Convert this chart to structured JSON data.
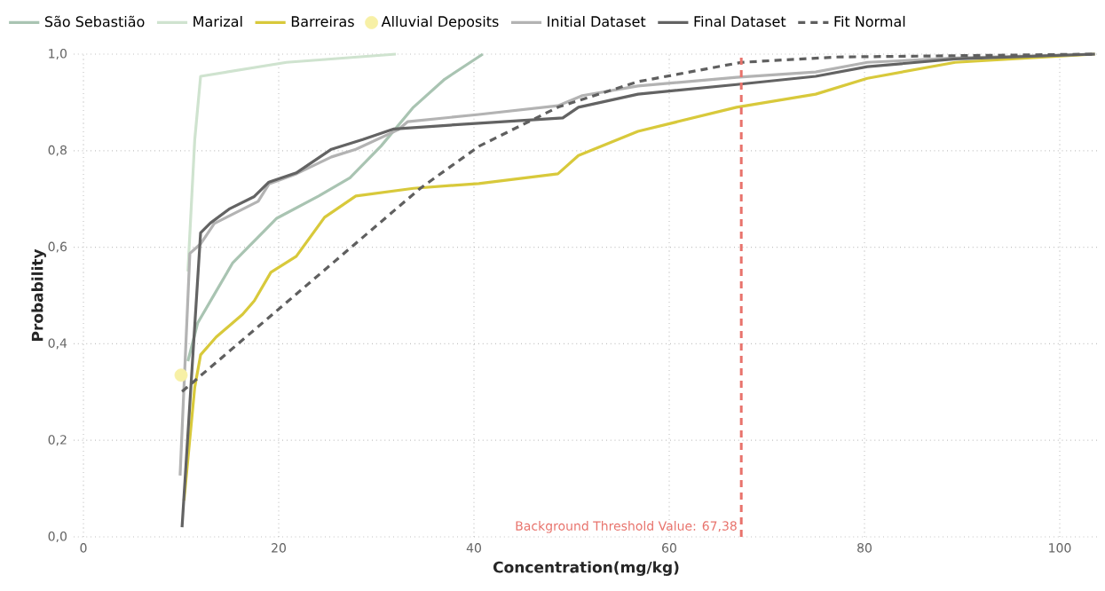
{
  "chart_data": {
    "type": "line",
    "xlabel": "Concentration(mg/kg)",
    "ylabel": "Probability",
    "xlim": [
      -1,
      104
    ],
    "ylim": [
      0,
      1
    ],
    "xticks": [
      0,
      20,
      40,
      60,
      80,
      100
    ],
    "yticks": [
      {
        "value": 0,
        "label": "0,0"
      },
      {
        "value": 0.2,
        "label": "0,2"
      },
      {
        "value": 0.4,
        "label": "0,4"
      },
      {
        "value": 0.6,
        "label": "0,6"
      },
      {
        "value": 0.8,
        "label": "0,8"
      },
      {
        "value": 1,
        "label": "1,0"
      }
    ],
    "grid": true,
    "legend": "top",
    "ref_lines": [
      {
        "axis": "x",
        "value": 67.38,
        "label": "Background Threshold Value: 67,38",
        "color": "#e8736c",
        "line_style": "dashed"
      }
    ],
    "series": [
      {
        "name": "São Sebastião",
        "color": "#a9c4b2",
        "x": [
          10.7,
          11.7,
          13.4,
          15.3,
          19.8,
          24.1,
          27.3,
          30.5,
          33.8,
          37.0,
          40.9
        ],
        "values": [
          0.364,
          0.443,
          0.502,
          0.568,
          0.66,
          0.706,
          0.744,
          0.81,
          0.89,
          0.948,
          1.0
        ]
      },
      {
        "name": "Marizal",
        "color": "#cfe3cf",
        "x": [
          10.7,
          11.4,
          12.0,
          20.8,
          32.0
        ],
        "values": [
          0.55,
          0.823,
          0.954,
          0.983,
          1.0
        ]
      },
      {
        "name": "Barreiras",
        "color": "#d8c93b",
        "x": [
          10.3,
          11.4,
          12.0,
          13.6,
          16.3,
          17.5,
          19.2,
          21.8,
          24.7,
          27.9,
          33.8,
          40.5,
          48.6,
          50.7,
          56.8,
          66.9,
          75.0,
          80.3,
          89.3,
          103.6
        ],
        "values": [
          0.075,
          0.31,
          0.377,
          0.414,
          0.461,
          0.489,
          0.548,
          0.581,
          0.662,
          0.706,
          0.722,
          0.732,
          0.752,
          0.79,
          0.84,
          0.89,
          0.917,
          0.95,
          0.983,
          1.0
        ]
      },
      {
        "name": "Alluvial Deposits",
        "color": "#f7f0a6",
        "type": "scatter",
        "x": [
          10.0
        ],
        "values": [
          0.335
        ]
      },
      {
        "name": "Initial Dataset",
        "color": "#b3b3b3",
        "x": [
          9.9,
          10.9,
          12.0,
          13.4,
          17.9,
          19.0,
          21.8,
          25.4,
          27.9,
          32.2,
          33.2,
          40.5,
          48.6,
          51.1,
          56.8,
          66.9,
          75.0,
          80.3,
          89.3,
          103.6
        ],
        "values": [
          0.127,
          0.587,
          0.607,
          0.649,
          0.695,
          0.731,
          0.752,
          0.787,
          0.803,
          0.843,
          0.86,
          0.875,
          0.893,
          0.914,
          0.934,
          0.952,
          0.963,
          0.983,
          0.992,
          1.0
        ]
      },
      {
        "name": "Final Dataset",
        "color": "#636363",
        "x": [
          10.1,
          12.0,
          13.0,
          15.0,
          17.5,
          19.0,
          21.8,
          25.4,
          28.6,
          31.8,
          40.5,
          49.1,
          50.7,
          56.8,
          66.9,
          75.0,
          80.3,
          89.3,
          103.6
        ],
        "values": [
          0.02,
          0.63,
          0.65,
          0.68,
          0.705,
          0.735,
          0.754,
          0.803,
          0.823,
          0.845,
          0.857,
          0.868,
          0.89,
          0.917,
          0.937,
          0.954,
          0.974,
          0.99,
          1.0
        ]
      },
      {
        "name": "Fit Normal",
        "color": "#5f5f5f",
        "line_style": "dashed",
        "x": [
          10.1,
          34.5,
          40.5,
          48.6,
          56.8,
          67.4,
          77.1,
          103.6
        ],
        "values": [
          0.301,
          0.722,
          0.809,
          0.89,
          0.943,
          0.983,
          0.994,
          1.0
        ]
      }
    ]
  }
}
